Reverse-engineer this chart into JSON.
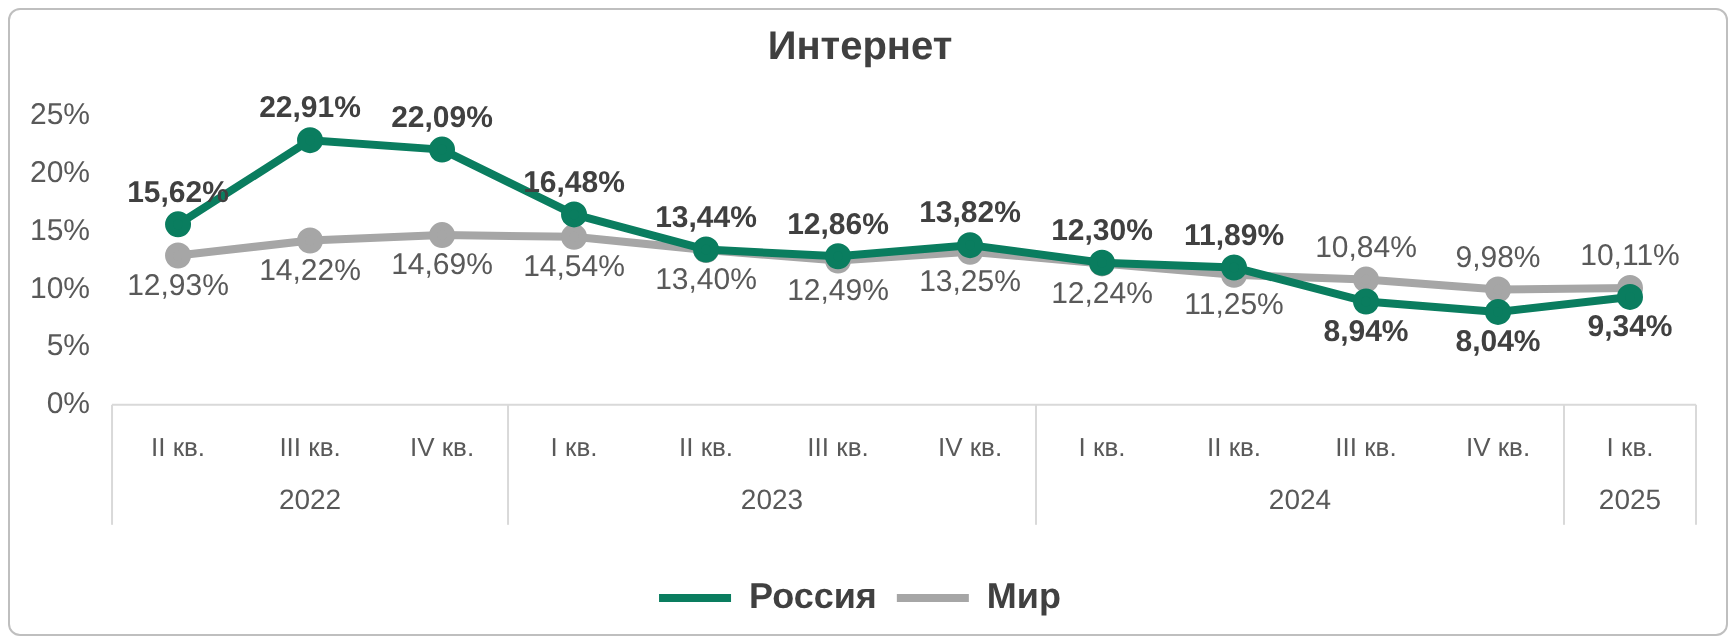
{
  "chart_data": {
    "type": "line",
    "title": "Интернет",
    "categories": [
      "II кв.",
      "III кв.",
      "IV кв.",
      "I кв.",
      "II кв.",
      "III кв.",
      "IV кв.",
      "I кв.",
      "II кв.",
      "III кв.",
      "IV кв.",
      "I кв."
    ],
    "annotations": [
      "2022",
      "2023",
      "2024",
      "2025"
    ],
    "series": [
      {
        "name": "Россия",
        "color": "#0a7d5f",
        "values": [
          15.62,
          22.91,
          22.09,
          16.48,
          13.44,
          12.86,
          13.82,
          12.3,
          11.89,
          8.94,
          8.04,
          9.34
        ],
        "value_labels": [
          "15,62%",
          "22,91%",
          "22,09%",
          "16,48%",
          "13,44%",
          "12,86%",
          "13,82%",
          "12,30%",
          "11,89%",
          "8,94%",
          "8,04%",
          "9,34%"
        ]
      },
      {
        "name": "Мир",
        "color": "#a6a6a6",
        "values": [
          12.93,
          14.22,
          14.69,
          14.54,
          13.4,
          12.49,
          13.25,
          12.24,
          11.25,
          10.84,
          9.98,
          10.11
        ],
        "value_labels": [
          "12,93%",
          "14,22%",
          "14,69%",
          "14,54%",
          "13,40%",
          "12,49%",
          "13,25%",
          "12,24%",
          "11,25%",
          "10,84%",
          "9,98%",
          "10,11%"
        ]
      }
    ],
    "ylim": [
      0,
      25
    ],
    "yticks": [
      {
        "value": 0,
        "label": "0%"
      },
      {
        "value": 5,
        "label": "5%"
      },
      {
        "value": 10,
        "label": "10%"
      },
      {
        "value": 15,
        "label": "15%"
      },
      {
        "value": 20,
        "label": "20%"
      },
      {
        "value": 25,
        "label": "25%"
      }
    ],
    "marker": "circle",
    "legend": "bottom"
  }
}
